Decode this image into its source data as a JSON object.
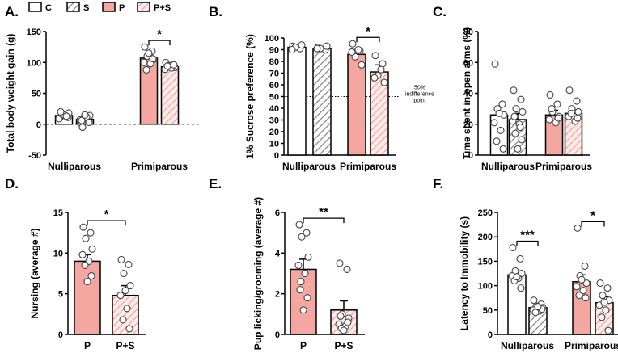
{
  "legend": {
    "items": [
      {
        "label": "C",
        "fill": "white",
        "hatch": false
      },
      {
        "label": "S",
        "fill": "white",
        "hatch": true
      },
      {
        "label": "P",
        "fill": "#F4A6A0",
        "hatch": false
      },
      {
        "label": "P+S",
        "fill": "#FBD9D6",
        "hatch": true
      }
    ]
  },
  "colors": {
    "pink": "#F4A6A0",
    "pink_light": "#FDECEA",
    "hatch_pink": "#F4A6A0",
    "hatch_gray": "#8a8a8a"
  },
  "chart_data": [
    {
      "panel": "A.",
      "type": "bar",
      "ylabel": "Total body weight gain (g)",
      "ylim": [
        -50,
        150
      ],
      "yticks": [
        -50,
        0,
        50,
        100,
        150
      ],
      "tick_labels": [
        "-50",
        "0",
        "50",
        "100",
        "150"
      ],
      "zero_line_dashed": true,
      "groups": [
        "Nulliparous",
        "Primiparous"
      ],
      "bars": [
        {
          "group": 0,
          "cond": "C",
          "value": 14,
          "err": 3,
          "points": [
            10,
            12,
            16,
            18,
            9,
            14,
            17,
            11,
            15,
            20,
            13
          ]
        },
        {
          "group": 0,
          "cond": "S",
          "value": 8,
          "err": 3,
          "points": [
            2,
            5,
            10,
            14,
            7,
            12,
            -5,
            3,
            15,
            6
          ]
        },
        {
          "group": 1,
          "cond": "P",
          "value": 107,
          "err": 7,
          "points": [
            125,
            118,
            110,
            105,
            100,
            98,
            88,
            106,
            115
          ]
        },
        {
          "group": 1,
          "cond": "P+S",
          "value": 93,
          "err": 2,
          "points": [
            100,
            97,
            95,
            92,
            89,
            91,
            94,
            96
          ]
        }
      ],
      "sig": [
        {
          "bars": [
            2,
            3
          ],
          "text": "*"
        }
      ]
    },
    {
      "panel": "B.",
      "type": "bar",
      "ylabel": "1% Sucrose preference (%)",
      "ylim": [
        0,
        100
      ],
      "yticks": [
        0,
        10,
        20,
        30,
        40,
        50,
        60,
        70,
        80,
        90,
        100
      ],
      "tick_labels": [
        "0",
        "10",
        "20",
        "30",
        "40",
        "50",
        "60",
        "70",
        "80",
        "90",
        "100"
      ],
      "groups": [
        "Nulliparous",
        "Primiparous"
      ],
      "bars": [
        {
          "group": 0,
          "cond": "C",
          "value": 92,
          "err": 1,
          "points": [
            93,
            91,
            92,
            94,
            90
          ]
        },
        {
          "group": 0,
          "cond": "S",
          "value": 91,
          "err": 1,
          "points": [
            92,
            90,
            91,
            93,
            91
          ]
        },
        {
          "group": 1,
          "cond": "P",
          "value": 86,
          "err": 4,
          "points": [
            95,
            89,
            84,
            77,
            88,
            90
          ]
        },
        {
          "group": 1,
          "cond": "P+S",
          "value": 71,
          "err": 6,
          "points": [
            85,
            78,
            68,
            62,
            66,
            73
          ]
        }
      ],
      "sig": [
        {
          "bars": [
            2,
            3
          ],
          "text": "*"
        }
      ],
      "refline": {
        "value": 50,
        "label_lines": [
          "50%",
          "indifference",
          "point"
        ]
      }
    },
    {
      "panel": "C.",
      "type": "bar",
      "ylabel": "Time spent in  open  arms (%)",
      "ylim": [
        0,
        80
      ],
      "yticks": [
        0,
        20,
        40,
        60,
        80
      ],
      "tick_labels": [
        "0",
        "20",
        "40",
        "60",
        "80"
      ],
      "groups": [
        "Nulliparous",
        "Primiparous"
      ],
      "bars": [
        {
          "group": 0,
          "cond": "C",
          "value": 26,
          "err": 5,
          "points": [
            59,
            33,
            30,
            26,
            21,
            16,
            9,
            4,
            27
          ]
        },
        {
          "group": 0,
          "cond": "S",
          "value": 23,
          "err": 4,
          "points": [
            42,
            36,
            30,
            28,
            22,
            20,
            14,
            10,
            4,
            25,
            18
          ]
        },
        {
          "group": 1,
          "cond": "P",
          "value": 26,
          "err": 3,
          "points": [
            39,
            33,
            28,
            25,
            23,
            21,
            30,
            24
          ]
        },
        {
          "group": 1,
          "cond": "P+S",
          "value": 27,
          "err": 2,
          "points": [
            42,
            35,
            30,
            28,
            25,
            22,
            27,
            24
          ]
        }
      ]
    },
    {
      "panel": "D.",
      "type": "bar",
      "ylabel": "Nursing (average #)",
      "ylim": [
        0,
        15
      ],
      "yticks": [
        0,
        5,
        10,
        15
      ],
      "tick_labels": [
        "0",
        "5",
        "10",
        "15"
      ],
      "groups": [
        "P",
        "P+S"
      ],
      "bars": [
        {
          "group": 0,
          "cond": "P",
          "value": 9,
          "err": 0.8,
          "points": [
            13.2,
            12.5,
            11.8,
            10.5,
            9.8,
            9.0,
            8.5,
            7.2,
            6.5
          ]
        },
        {
          "group": 1,
          "cond": "P+S",
          "value": 4.8,
          "err": 1.2,
          "points": [
            9.2,
            8.6,
            7.5,
            6.0,
            4.8,
            3.2,
            1.8,
            0.7,
            5.4
          ]
        }
      ],
      "sig": [
        {
          "bars": [
            0,
            1
          ],
          "text": "*"
        }
      ]
    },
    {
      "panel": "E.",
      "type": "bar",
      "ylabel": "Pup licking/grooming (average #)",
      "ylim": [
        0,
        6
      ],
      "yticks": [
        0,
        2,
        4,
        6
      ],
      "tick_labels": [
        "0",
        "2",
        "4",
        "6"
      ],
      "groups": [
        "P",
        "P+S"
      ],
      "bars": [
        {
          "group": 0,
          "cond": "P",
          "value": 3.2,
          "err": 0.5,
          "points": [
            5.4,
            5.0,
            4.8,
            3.8,
            3.4,
            3.0,
            2.6,
            1.8,
            1.2,
            2.2
          ]
        },
        {
          "group": 1,
          "cond": "P+S",
          "value": 1.2,
          "err": 0.45,
          "points": [
            3.5,
            3.2,
            1.0,
            0.8,
            0.5,
            0.4,
            0.3,
            0.6,
            0.2,
            0.9
          ]
        }
      ],
      "sig": [
        {
          "bars": [
            0,
            1
          ],
          "text": "**"
        }
      ]
    },
    {
      "panel": "F.",
      "type": "bar",
      "ylabel": "Latency to Immobility (s)",
      "ylim": [
        0,
        250
      ],
      "yticks": [
        0,
        50,
        100,
        150,
        200,
        250
      ],
      "tick_labels": [
        "0",
        "50",
        "100",
        "150",
        "200",
        "250"
      ],
      "groups": [
        "Nulliparous",
        "Primiparous"
      ],
      "bars": [
        {
          "group": 0,
          "cond": "C",
          "value": 122,
          "err": 8,
          "points": [
            178,
            155,
            130,
            125,
            120,
            115,
            110,
            95,
            118
          ]
        },
        {
          "group": 0,
          "cond": "S",
          "value": 55,
          "err": 3,
          "points": [
            70,
            62,
            58,
            55,
            50,
            48,
            45,
            52,
            57
          ]
        },
        {
          "group": 1,
          "cond": "P",
          "value": 108,
          "err": 14,
          "points": [
            218,
            140,
            120,
            105,
            98,
            90,
            80,
            75,
            112
          ]
        },
        {
          "group": 1,
          "cond": "P+S",
          "value": 65,
          "err": 12,
          "points": [
            105,
            95,
            80,
            70,
            60,
            50,
            35,
            8,
            66
          ]
        }
      ],
      "sig": [
        {
          "bars": [
            0,
            1
          ],
          "text": "***"
        },
        {
          "bars": [
            2,
            3
          ],
          "text": "*"
        }
      ]
    }
  ]
}
